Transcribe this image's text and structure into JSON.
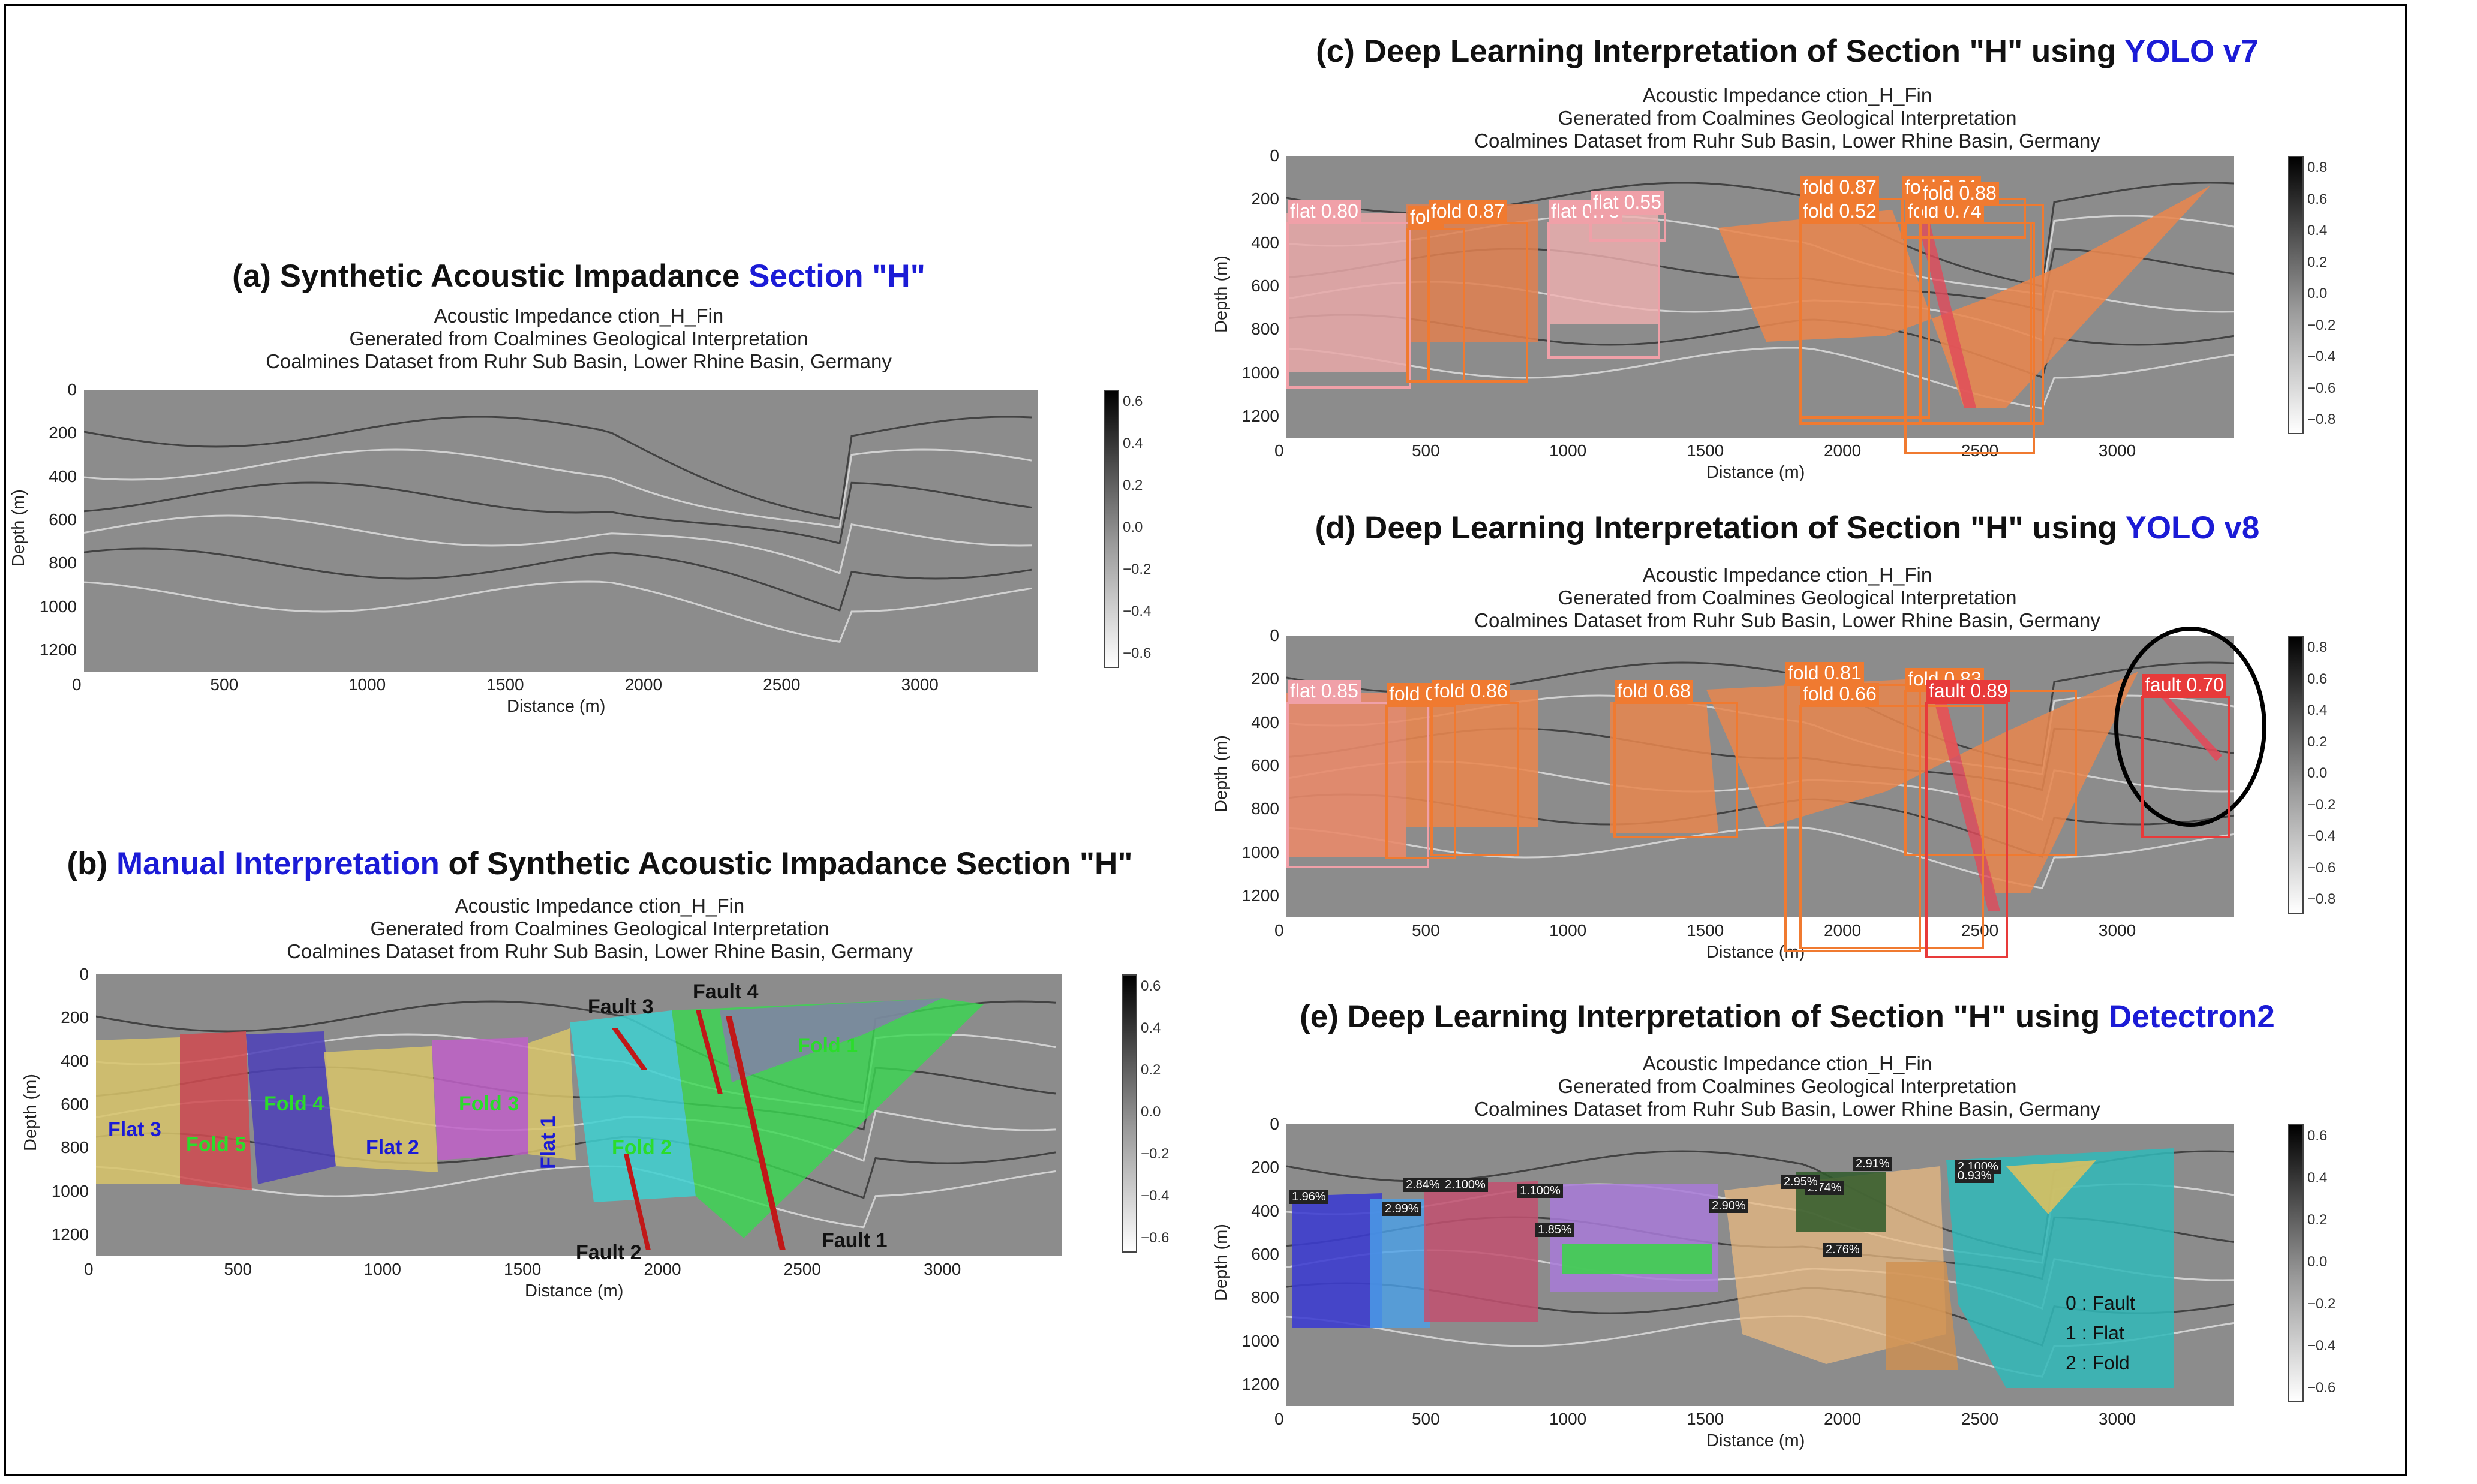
{
  "subtitles": [
    "Acoustic Impedance ction_H_Fin",
    "Generated from Coalmines Geological Interpretation",
    "Coalmines Dataset from Ruhr Sub Basin, Lower Rhine Basin, Germany"
  ],
  "axes": {
    "xlabel": "Distance (m)",
    "ylabel": "Depth (m)",
    "xticks": [
      "0",
      "500",
      "1000",
      "1500",
      "2000",
      "2500",
      "3000"
    ],
    "yticks": [
      "0",
      "200",
      "400",
      "600",
      "800",
      "1000",
      "1200"
    ],
    "cbar_ticks_a": [
      "0.6",
      "0.4",
      "0.2",
      "0.0",
      "−0.2",
      "−0.4",
      "−0.6"
    ],
    "cbar_ticks_c": [
      "0.8",
      "0.6",
      "0.4",
      "0.2",
      "0.0",
      "−0.2",
      "−0.4",
      "−0.6",
      "−0.8"
    ]
  },
  "panels": {
    "a": {
      "title_pre": "(a) Synthetic Acoustic Impadance ",
      "title_hl": "Section \"H\"",
      "title_post": ""
    },
    "b": {
      "title_pre": "(b) ",
      "title_hl": "Manual Interpretation",
      "title_post": " of Synthetic Acoustic Impadance Section \"H\""
    },
    "c": {
      "title_pre": "(c) Deep Learning Interpretation of Section \"H\" using ",
      "title_hl": "YOLO v7",
      "title_post": ""
    },
    "d": {
      "title_pre": "(d) Deep Learning Interpretation of Section \"H\" using ",
      "title_hl": "YOLO v8",
      "title_post": ""
    },
    "e": {
      "title_pre": "(e) Deep Learning Interpretation of Section \"H\" using ",
      "title_hl": "Detectron2",
      "title_post": ""
    }
  },
  "manual_labels": [
    {
      "text": "Flat 3",
      "color": "#1b1bd6"
    },
    {
      "text": "Fold 5",
      "color": "#2bdc2b"
    },
    {
      "text": "Fold 4",
      "color": "#2bdc2b"
    },
    {
      "text": "Flat 2",
      "color": "#1b1bd6"
    },
    {
      "text": "Fold 3",
      "color": "#2bdc2b"
    },
    {
      "text": "Flat 1",
      "color": "#1b1bd6"
    },
    {
      "text": "Fold 2",
      "color": "#2bdc2b"
    },
    {
      "text": "Fold 1",
      "color": "#2bdc2b"
    },
    {
      "text": "Fault 3",
      "color": "#111111"
    },
    {
      "text": "Fault 4",
      "color": "#111111"
    },
    {
      "text": "Fault 2",
      "color": "#111111"
    },
    {
      "text": "Fault 1",
      "color": "#111111"
    }
  ],
  "yolo7_labels": [
    "flat 0.80",
    "fold",
    "fold 0.87",
    "flat 0.73",
    "flat 0.55",
    "fold 0.87",
    "fold 0.52",
    "fold 0.74",
    "fold 0.91",
    "fold 0.88"
  ],
  "yolo8_labels": [
    "flat 0.85",
    "fold 0.80",
    "fold 0.86",
    "fold 0.68",
    "fold 0.81",
    "fold 0.66",
    "fold 0.83",
    "fault 0.89",
    "fault 0.70"
  ],
  "detectron_labels": [
    "1.96%",
    "2.99%",
    "2.84%",
    "2.100%",
    "1.100%",
    "1.85%",
    "2.90%",
    "2.74%",
    "2.91%",
    "2.76%",
    "2.100%",
    "0.93%",
    "2.95%"
  ],
  "detectron_legend": [
    "0 : Fault",
    "1 : Flat",
    "2 : Fold"
  ],
  "colors": {
    "flat": "#f0a0a8",
    "fold": "#f07a30",
    "fault": "#e83a3a",
    "highlight": "#1b1bd6"
  },
  "chart_data": [
    {
      "type": "heatmap",
      "title": "(a) Synthetic Acoustic Impadance Section \"H\"",
      "xlabel": "Distance (m)",
      "ylabel": "Depth (m)",
      "xlim": [
        0,
        3450
      ],
      "ylim": [
        1300,
        0
      ],
      "colorbar_range": [
        -0.7,
        0.7
      ]
    },
    {
      "type": "heatmap",
      "title": "(b) Manual Interpretation of Synthetic Acoustic Impadance Section \"H\"",
      "xlabel": "Distance (m)",
      "ylabel": "Depth (m)",
      "regions": [
        "Flat 3",
        "Fold 5",
        "Fold 4",
        "Flat 2",
        "Fold 3",
        "Flat 1",
        "Fold 2",
        "Fold 1"
      ],
      "faults": [
        "Fault 1",
        "Fault 2",
        "Fault 3",
        "Fault 4"
      ]
    },
    {
      "type": "heatmap",
      "title": "(c) Deep Learning Interpretation of Section \"H\" using YOLO v7",
      "detections": [
        {
          "label": "flat",
          "score": 0.8
        },
        {
          "label": "fold",
          "score": 0.87
        },
        {
          "label": "flat",
          "score": 0.73
        },
        {
          "label": "flat",
          "score": 0.55
        },
        {
          "label": "fold",
          "score": 0.87
        },
        {
          "label": "fold",
          "score": 0.52
        },
        {
          "label": "fold",
          "score": 0.74
        },
        {
          "label": "fold",
          "score": 0.91
        },
        {
          "label": "fold",
          "score": 0.88
        }
      ]
    },
    {
      "type": "heatmap",
      "title": "(d) Deep Learning Interpretation of Section \"H\" using YOLO v8",
      "detections": [
        {
          "label": "flat",
          "score": 0.85
        },
        {
          "label": "fold",
          "score": 0.8
        },
        {
          "label": "fold",
          "score": 0.86
        },
        {
          "label": "fold",
          "score": 0.68
        },
        {
          "label": "fold",
          "score": 0.81
        },
        {
          "label": "fold",
          "score": 0.66
        },
        {
          "label": "fold",
          "score": 0.83
        },
        {
          "label": "fault",
          "score": 0.89
        },
        {
          "label": "fault",
          "score": 0.7
        }
      ]
    },
    {
      "type": "heatmap",
      "title": "(e) Deep Learning Interpretation of Section \"H\" using Detectron2",
      "classes": [
        "0 : Fault",
        "1 : Flat",
        "2 : Fold"
      ]
    }
  ]
}
